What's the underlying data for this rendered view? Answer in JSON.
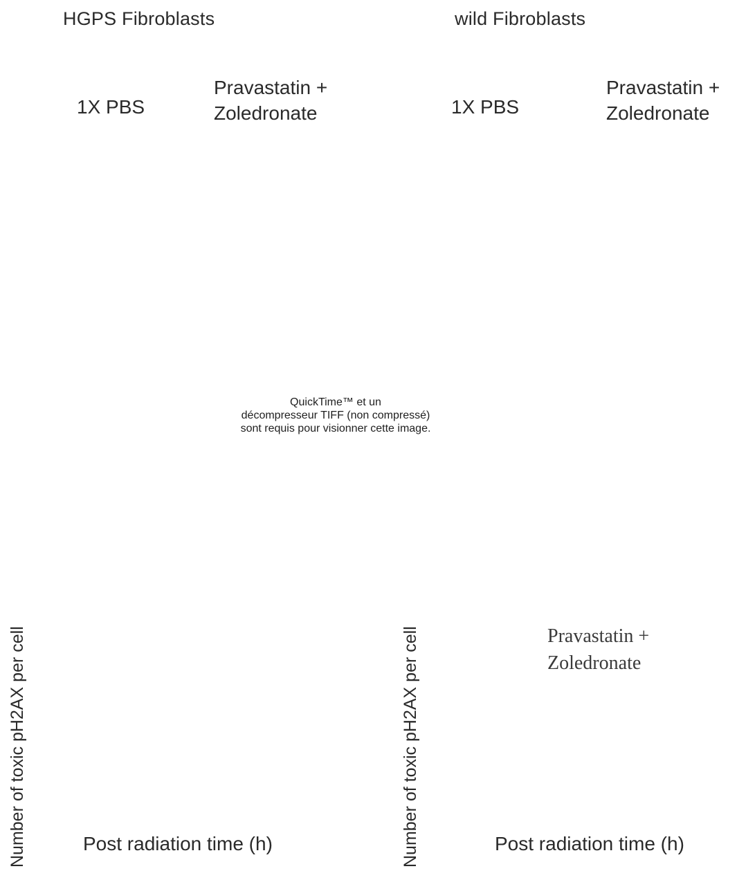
{
  "header": {
    "left_title": "HGPS Fibroblasts",
    "right_title": "wild Fibroblasts"
  },
  "conditions": {
    "left_control": "1X PBS",
    "left_treatment_line1": "Pravastatin +",
    "left_treatment_line2": "Zoledronate",
    "right_control": "1X PBS",
    "right_treatment_line1": "Pravastatin +",
    "right_treatment_line2": "Zoledronate"
  },
  "image_placeholder": {
    "line1": "QuickTime™ et un",
    "line2": "décompresseur TIFF (non compressé)",
    "line3": "sont requis pour visionner cette image."
  },
  "charts": {
    "left": {
      "ylabel": "Number of toxic pH2AX per cell",
      "xlabel": "Post radiation time (h)"
    },
    "right": {
      "ylabel": "Number of toxic pH2AX per cell",
      "xlabel": "Post radiation time (h)",
      "annotation_line1": "Pravastatin +",
      "annotation_line2": "Zoledronate"
    }
  }
}
